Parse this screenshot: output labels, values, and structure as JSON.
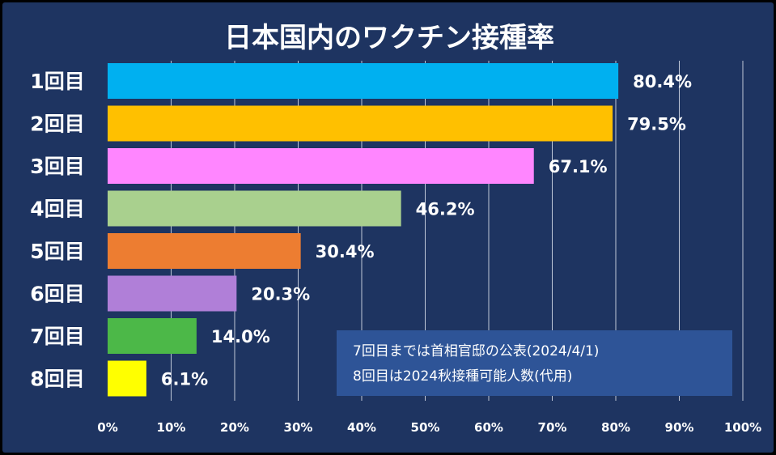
{
  "chart_data": {
    "type": "bar",
    "orientation": "horizontal",
    "title": "日本国内のワクチン接種率",
    "categories": [
      "1回目",
      "2回目",
      "3回目",
      "4回目",
      "5回目",
      "6回目",
      "7回目",
      "8回目"
    ],
    "values": [
      80.4,
      79.5,
      67.1,
      46.2,
      30.4,
      20.3,
      14.0,
      6.1
    ],
    "value_labels": [
      "80.4%",
      "79.5%",
      "67.1%",
      "46.2%",
      "30.4%",
      "20.3%",
      "14.0%",
      "6.1%"
    ],
    "bar_colors": [
      "#00b0f0",
      "#ffc000",
      "#ff86ff",
      "#a9d08e",
      "#ed7d31",
      "#b07fd8",
      "#4cb848",
      "#ffff00"
    ],
    "xlim": [
      0,
      100
    ],
    "x_ticks": [
      0,
      10,
      20,
      30,
      40,
      50,
      60,
      70,
      80,
      90,
      100
    ],
    "x_tick_labels": [
      "0%",
      "10%",
      "20%",
      "30%",
      "40%",
      "50%",
      "60%",
      "70%",
      "80%",
      "90%",
      "100%"
    ],
    "grid": true,
    "annotation": {
      "lines": [
        "7回目までは首相官邸の公表(2024/4/1)",
        "8回目は2024秋接種可能人数(代用)"
      ],
      "background": "#2e5497"
    },
    "background": "#1e3461",
    "text_color": "#ffffff",
    "gridline_color": "#c0c8d8"
  }
}
